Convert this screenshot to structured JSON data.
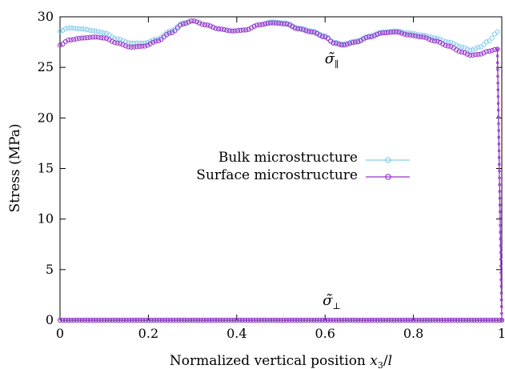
{
  "chart_data": {
    "type": "scatter",
    "xlabel": "Normalized vertical position x3/l",
    "ylabel": "Stress (MPa)",
    "xlim": [
      0,
      1
    ],
    "ylim": [
      0,
      30
    ],
    "x_ticks": [
      "0",
      "0.2",
      "0.4",
      "0.6",
      "0.8",
      "1"
    ],
    "y_ticks": [
      "0",
      "5",
      "10",
      "15",
      "20",
      "25",
      "30"
    ],
    "legend_position": "center",
    "grid": false,
    "annotations": [
      {
        "text": "σ̃",
        "subscript": "∥",
        "x": 0.615,
        "y": 25.4
      },
      {
        "text": "σ̃",
        "subscript": "⊥",
        "x": 0.615,
        "y": 1.5
      }
    ],
    "series": [
      {
        "name": "Bulk microstructure",
        "color": "#87ceeb",
        "marker": "open-circle",
        "parallel_curve": [
          [
            0.0,
            28.6
          ],
          [
            0.02,
            28.9
          ],
          [
            0.05,
            28.8
          ],
          [
            0.08,
            28.6
          ],
          [
            0.1,
            28.4
          ],
          [
            0.13,
            27.8
          ],
          [
            0.16,
            27.4
          ],
          [
            0.19,
            27.4
          ],
          [
            0.22,
            27.8
          ],
          [
            0.25,
            28.6
          ],
          [
            0.28,
            29.4
          ],
          [
            0.3,
            29.6
          ],
          [
            0.33,
            29.2
          ],
          [
            0.36,
            28.8
          ],
          [
            0.39,
            28.6
          ],
          [
            0.42,
            28.7
          ],
          [
            0.45,
            29.2
          ],
          [
            0.48,
            29.5
          ],
          [
            0.51,
            29.4
          ],
          [
            0.54,
            28.9
          ],
          [
            0.57,
            28.6
          ],
          [
            0.6,
            28.1
          ],
          [
            0.62,
            27.5
          ],
          [
            0.64,
            27.3
          ],
          [
            0.67,
            27.6
          ],
          [
            0.7,
            28.1
          ],
          [
            0.73,
            28.5
          ],
          [
            0.76,
            28.6
          ],
          [
            0.79,
            28.4
          ],
          [
            0.82,
            28.2
          ],
          [
            0.85,
            27.9
          ],
          [
            0.88,
            27.5
          ],
          [
            0.91,
            27.0
          ],
          [
            0.93,
            26.7
          ],
          [
            0.95,
            27.0
          ],
          [
            0.97,
            27.6
          ],
          [
            0.99,
            28.5
          ]
        ],
        "perpendicular_curve": [
          [
            0.0,
            0.0
          ],
          [
            1.0,
            0.0
          ]
        ]
      },
      {
        "name": "Surface microstructure",
        "color": "#9933cc",
        "marker": "open-circle",
        "parallel_curve": [
          [
            0.0,
            27.2
          ],
          [
            0.02,
            27.7
          ],
          [
            0.05,
            27.9
          ],
          [
            0.08,
            28.0
          ],
          [
            0.1,
            27.9
          ],
          [
            0.13,
            27.4
          ],
          [
            0.16,
            27.0
          ],
          [
            0.19,
            27.1
          ],
          [
            0.22,
            27.6
          ],
          [
            0.25,
            28.4
          ],
          [
            0.28,
            29.3
          ],
          [
            0.3,
            29.6
          ],
          [
            0.33,
            29.2
          ],
          [
            0.36,
            28.8
          ],
          [
            0.39,
            28.6
          ],
          [
            0.42,
            28.7
          ],
          [
            0.45,
            29.2
          ],
          [
            0.48,
            29.4
          ],
          [
            0.51,
            29.3
          ],
          [
            0.54,
            28.8
          ],
          [
            0.57,
            28.5
          ],
          [
            0.6,
            28.0
          ],
          [
            0.62,
            27.4
          ],
          [
            0.64,
            27.2
          ],
          [
            0.67,
            27.5
          ],
          [
            0.7,
            28.0
          ],
          [
            0.73,
            28.4
          ],
          [
            0.76,
            28.5
          ],
          [
            0.79,
            28.2
          ],
          [
            0.82,
            28.0
          ],
          [
            0.85,
            27.6
          ],
          [
            0.88,
            27.1
          ],
          [
            0.91,
            26.5
          ],
          [
            0.93,
            26.2
          ],
          [
            0.95,
            26.3
          ],
          [
            0.97,
            26.6
          ],
          [
            0.99,
            26.8
          ],
          [
            1.0,
            0.0
          ]
        ],
        "perpendicular_curve": [
          [
            0.0,
            0.0
          ],
          [
            1.0,
            0.0
          ]
        ]
      }
    ]
  }
}
